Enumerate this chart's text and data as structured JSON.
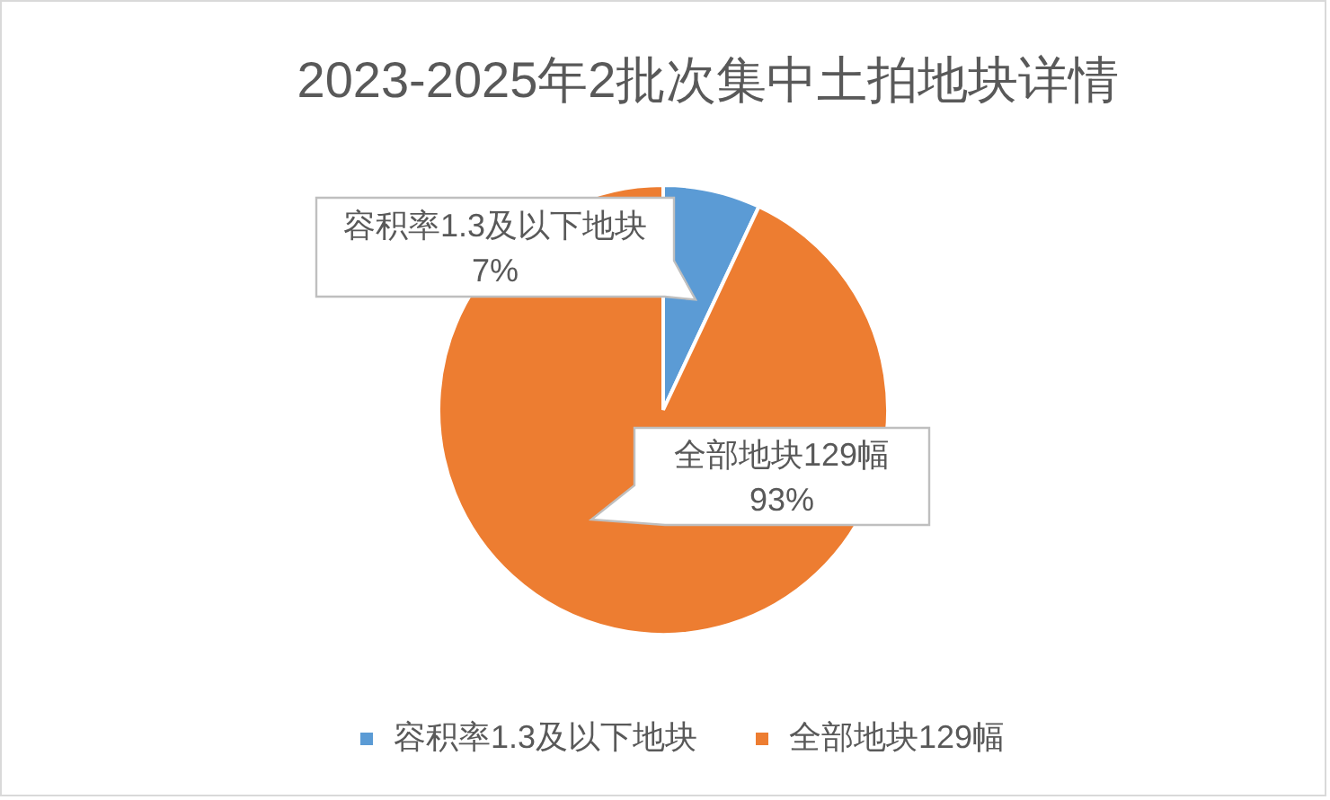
{
  "chart_data": {
    "type": "pie",
    "title": "2023-2025年2批次集中土拍地块详情",
    "categories": [
      "容积率1.3及以下地块",
      "全部地块129幅"
    ],
    "values": [
      7,
      93
    ],
    "colors": [
      "#5b9bd5",
      "#ed7d31"
    ],
    "value_labels": [
      "7%",
      "93%"
    ],
    "legend": "bottom"
  }
}
